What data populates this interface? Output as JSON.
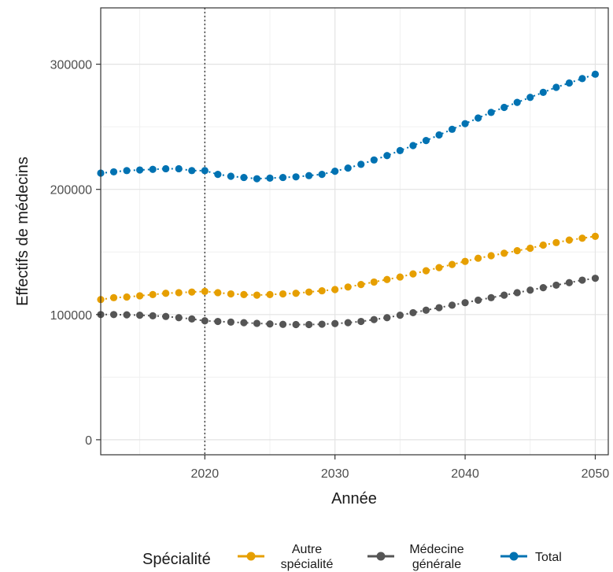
{
  "chart_data": {
    "type": "scatter",
    "xlabel": "Année",
    "ylabel": "Effectifs de médecins",
    "xlim": [
      2012,
      2051
    ],
    "ylim": [
      -12000,
      345000
    ],
    "x_ticks": [
      2020,
      2030,
      2040,
      2050
    ],
    "y_ticks": [
      0,
      100000,
      200000,
      300000
    ],
    "x_tick_labels": [
      "2020",
      "2030",
      "2040",
      "2050"
    ],
    "y_tick_labels": [
      "0",
      "100000",
      "200000",
      "300000"
    ],
    "vline_x": 2020,
    "grid": true,
    "legend_title": "Spécialité",
    "legend_position": "bottom",
    "x": [
      2012,
      2013,
      2014,
      2015,
      2016,
      2017,
      2018,
      2019,
      2020,
      2021,
      2022,
      2023,
      2024,
      2025,
      2026,
      2027,
      2028,
      2029,
      2030,
      2031,
      2032,
      2033,
      2034,
      2035,
      2036,
      2037,
      2038,
      2039,
      2040,
      2041,
      2042,
      2043,
      2044,
      2045,
      2046,
      2047,
      2048,
      2049,
      2050
    ],
    "series": [
      {
        "name": "Autre spécialité",
        "legend_lines": [
          "Autre",
          "spécialité"
        ],
        "color": "#E69F00",
        "values": [
          112000,
          113500,
          114000,
          115000,
          116000,
          117000,
          117500,
          118000,
          118500,
          117500,
          116500,
          116000,
          115500,
          116000,
          116500,
          117000,
          118000,
          119000,
          120000,
          122000,
          124000,
          126000,
          128000,
          130000,
          132500,
          135000,
          137500,
          140000,
          142500,
          145000,
          147000,
          149000,
          151000,
          153000,
          155500,
          157500,
          159500,
          161000,
          162500
        ]
      },
      {
        "name": "Médecine générale",
        "legend_lines": [
          "Médecine",
          "générale"
        ],
        "color": "#555555",
        "values": [
          100000,
          100000,
          99800,
          99500,
          99000,
          98500,
          97500,
          96500,
          95000,
          94500,
          94000,
          93500,
          93000,
          92500,
          92200,
          92000,
          92000,
          92300,
          92800,
          93500,
          94500,
          96000,
          97500,
          99500,
          101500,
          103500,
          105500,
          107500,
          109500,
          111500,
          113500,
          115500,
          117500,
          119500,
          121500,
          123500,
          125500,
          127500,
          129000
        ]
      },
      {
        "name": "Total",
        "legend_lines": [
          "Total"
        ],
        "color": "#0072B2",
        "values": [
          213000,
          214000,
          215000,
          215500,
          216000,
          216500,
          216500,
          215000,
          215000,
          212000,
          210500,
          209500,
          208500,
          209000,
          209500,
          210000,
          211000,
          212000,
          214500,
          217000,
          220000,
          223500,
          227000,
          231000,
          235000,
          239000,
          243500,
          248000,
          252500,
          257000,
          261500,
          265500,
          269500,
          273500,
          277500,
          281500,
          285000,
          288500,
          292000
        ]
      }
    ]
  }
}
